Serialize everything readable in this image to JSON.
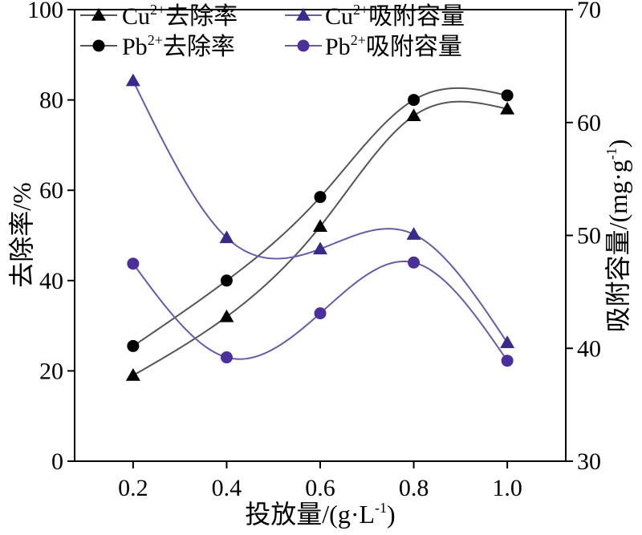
{
  "chart_data": {
    "type": "line",
    "x": [
      0.2,
      0.4,
      0.6,
      0.8,
      1.0
    ],
    "x_ticks": [
      "0.2",
      "0.4",
      "0.6",
      "0.8",
      "1.0"
    ],
    "xlim": [
      0.075,
      1.125
    ],
    "xlabel": {
      "main": "投放量/(g·L",
      "sup": "-1",
      "end": ")"
    },
    "y_left": {
      "label": "去除率/%",
      "ylim": [
        0,
        100
      ],
      "ticks": [
        "0",
        "20",
        "40",
        "60",
        "80",
        "100"
      ]
    },
    "y_right": {
      "label": {
        "main": "吸附容量/(mg·g",
        "sup": "-1",
        "end": ")"
      },
      "ylim": [
        30,
        70
      ],
      "ticks": [
        "30",
        "40",
        "50",
        "60",
        "70"
      ]
    },
    "grid": false,
    "legend_position": "top",
    "series": [
      {
        "name": "Cu2+去除率",
        "legend": {
          "base": "Cu",
          "sup": "2+",
          "rest": "去除率"
        },
        "axis": "left",
        "marker": "triangle",
        "color": "#000000",
        "line_color": "#555555",
        "values": [
          19,
          32,
          52,
          76.5,
          78
        ]
      },
      {
        "name": "Pb2+去除率",
        "legend": {
          "base": "Pb",
          "sup": "2+",
          "rest": "去除率"
        },
        "axis": "left",
        "marker": "circle",
        "color": "#000000",
        "line_color": "#555555",
        "values": [
          25.5,
          40,
          58.5,
          80,
          81
        ]
      },
      {
        "name": "Cu2+吸附容量",
        "legend": {
          "base": "Cu",
          "sup": "2+",
          "rest": "吸附容量"
        },
        "axis": "right",
        "marker": "triangle",
        "color": "#3b2a8a",
        "line_color": "#6a5aa8",
        "values": [
          63.7,
          49.8,
          48.8,
          50.1,
          40.5
        ]
      },
      {
        "name": "Pb2+吸附容量",
        "legend": {
          "base": "Pb",
          "sup": "2+",
          "rest": "吸附容量"
        },
        "axis": "right",
        "marker": "circle",
        "color": "#4b2f9a",
        "line_color": "#6a5aa8",
        "values": [
          47.5,
          39.2,
          43.1,
          47.6,
          38.9
        ]
      }
    ]
  }
}
